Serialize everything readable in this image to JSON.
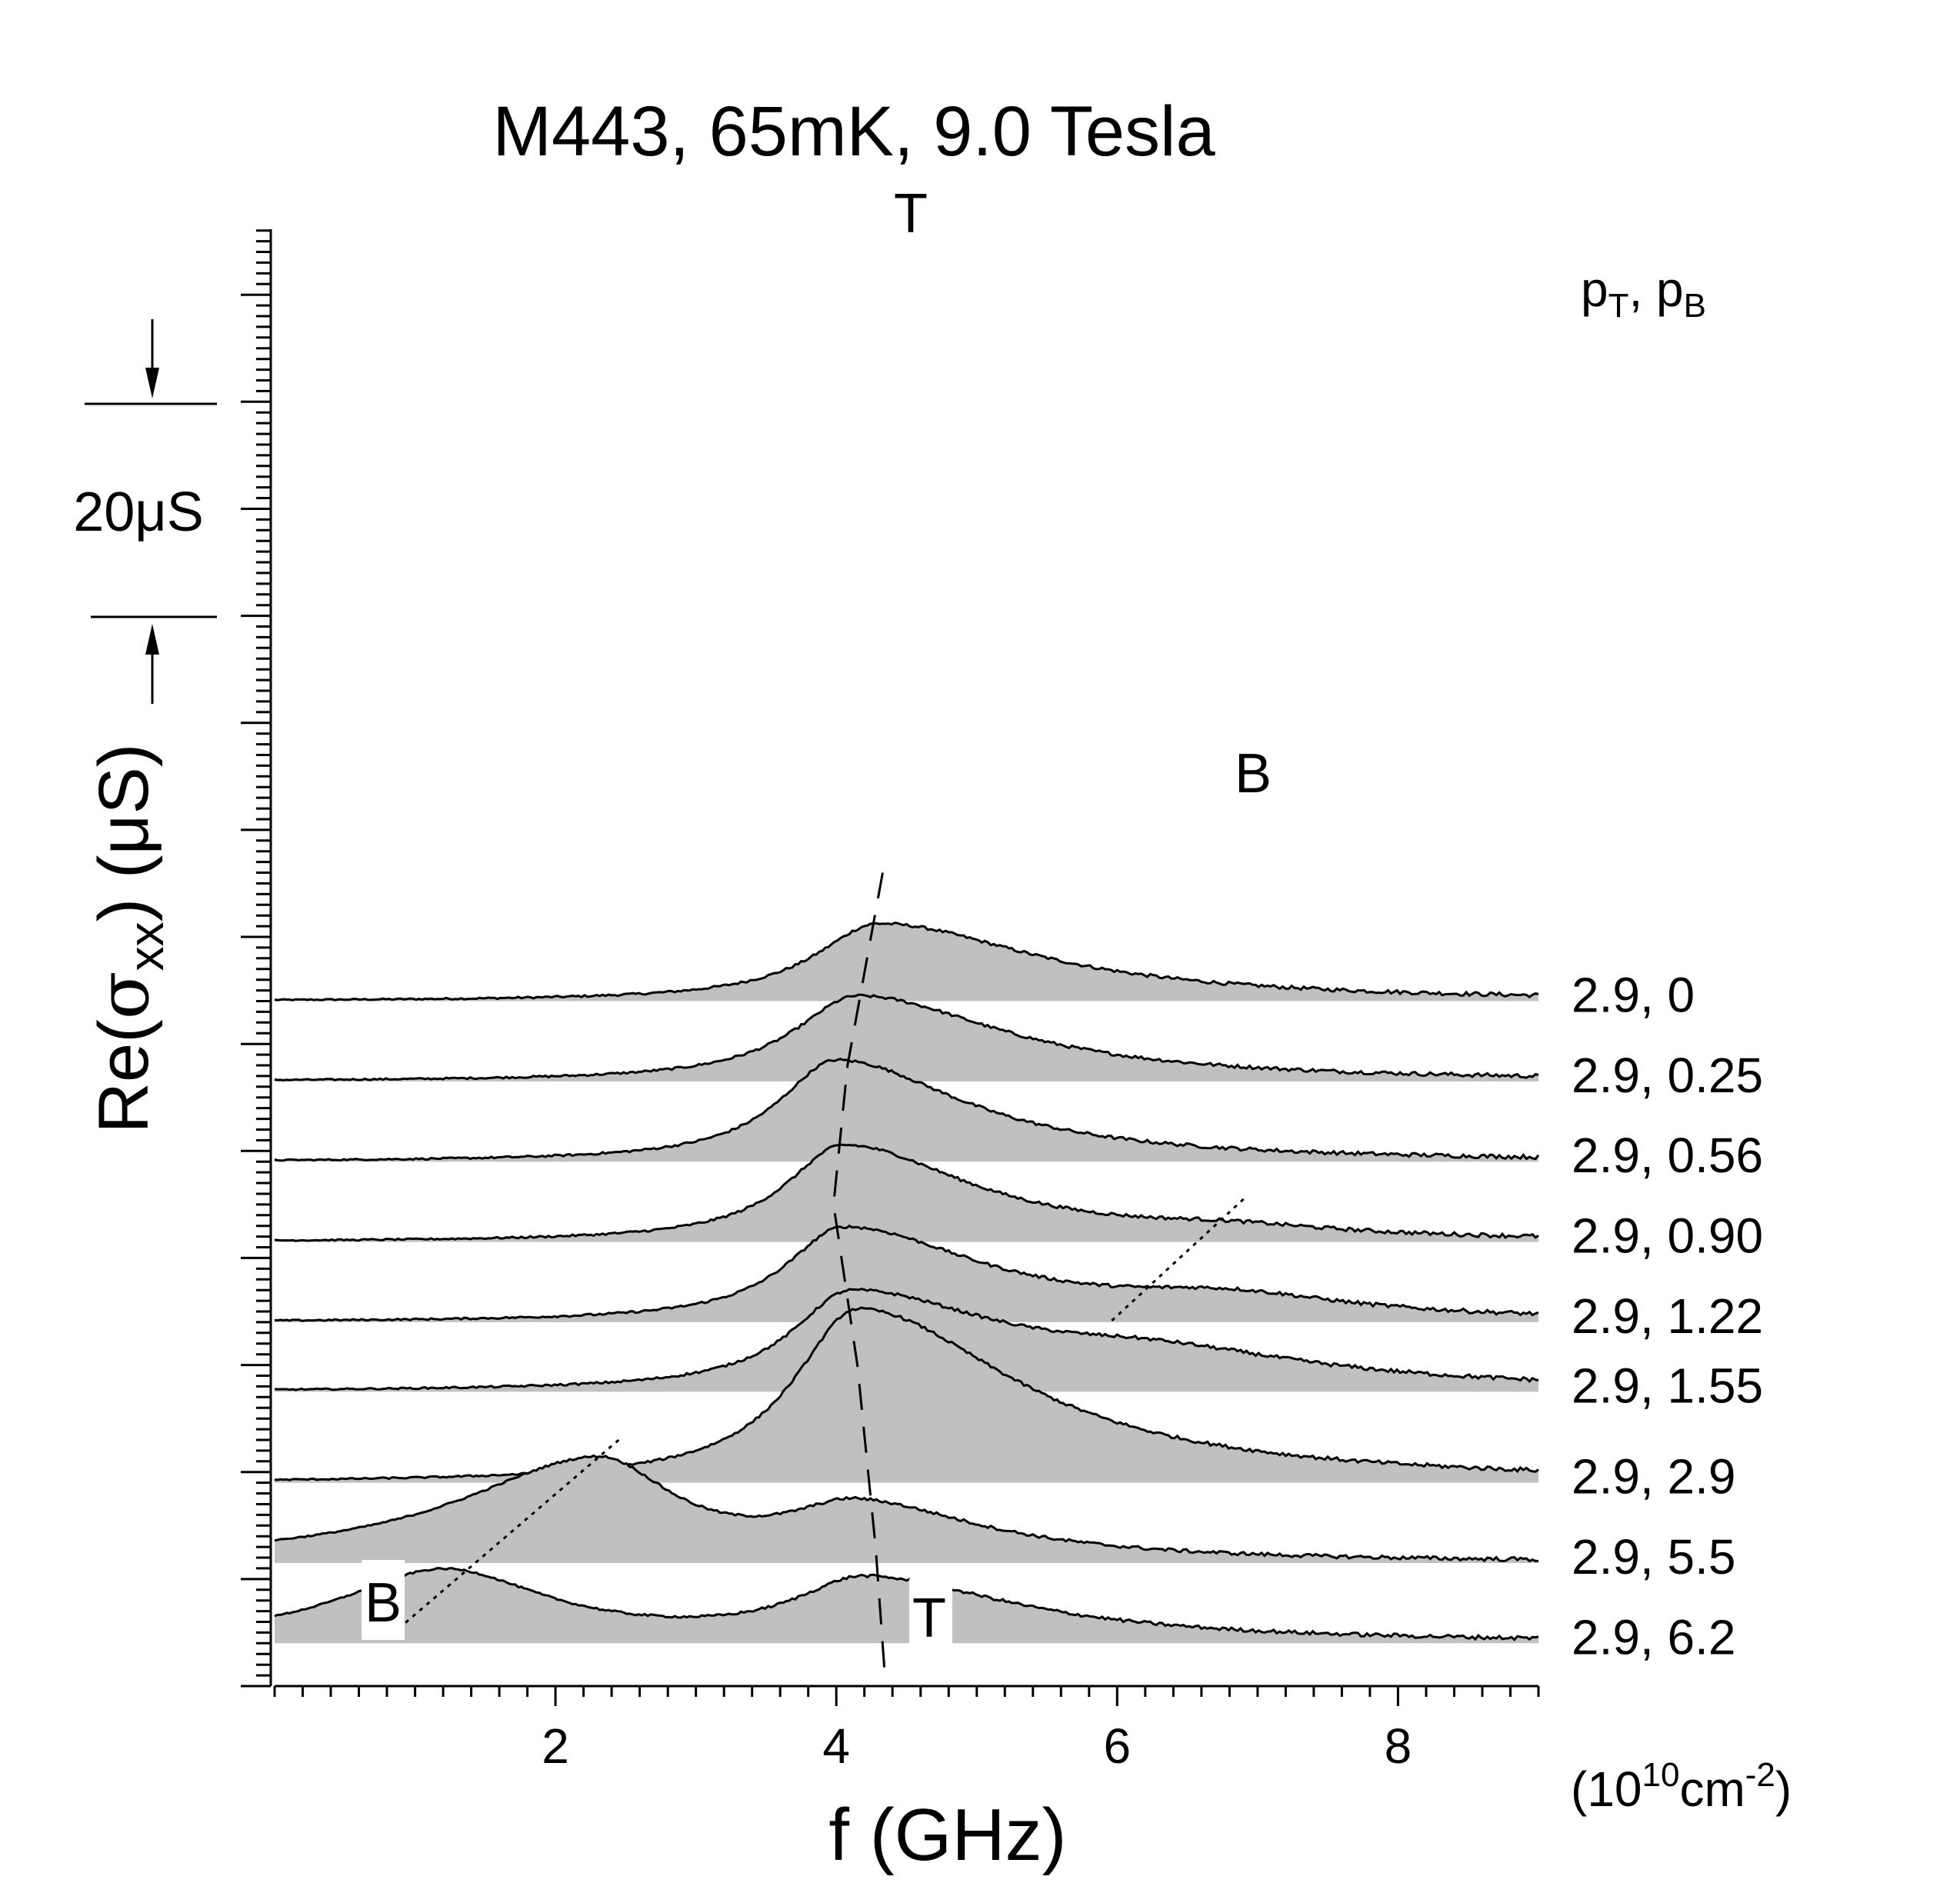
{
  "chart_data": {
    "type": "area",
    "title": "M443, 65mK, 9.0 Tesla",
    "xlabel": "f (GHz)",
    "ylabel_prefix": "Re(",
    "ylabel_sigma": "σ",
    "ylabel_sub": "xx",
    "ylabel_suffix": ") (μS)",
    "xlim": [
      0,
      9
    ],
    "x_ticks": [
      2,
      4,
      6,
      8
    ],
    "scale_bar_label": "20μS",
    "scale_bar_value_uS": 20,
    "legend_header_p": "p",
    "legend_header_sub_T": "T",
    "legend_header_sep": ", p",
    "legend_header_sub_B": "B",
    "density_unit_open": "(10",
    "density_unit_exp": "10",
    "density_unit_cm": "cm",
    "density_unit_exp2": "-2",
    "density_unit_close": ")",
    "label_T": "T",
    "label_B": "B",
    "series": [
      {
        "name": "2.9, 0",
        "pT": 2.9,
        "pB": 0,
        "offset_uS": 128,
        "peaks": [
          {
            "f": 4.3,
            "h": 14.5,
            "wl": 0.55,
            "wr": 1.35
          }
        ]
      },
      {
        "name": "2.9, 0.25",
        "pT": 2.9,
        "pB": 0.25,
        "offset_uS": 113,
        "peaks": [
          {
            "f": 4.15,
            "h": 16.0,
            "wl": 0.55,
            "wr": 1.25
          }
        ]
      },
      {
        "name": "2.9, 0.56",
        "pT": 2.9,
        "pB": 0.56,
        "offset_uS": 98,
        "peaks": [
          {
            "f": 4.0,
            "h": 19.0,
            "wl": 0.5,
            "wr": 1.1
          }
        ]
      },
      {
        "name": "2.9, 0.90",
        "pT": 2.9,
        "pB": 0.9,
        "offset_uS": 83,
        "peaks": [
          {
            "f": 4.05,
            "h": 18.0,
            "wl": 0.5,
            "wr": 1.1
          },
          {
            "f": 6.8,
            "h": 1.5,
            "wl": 0.8,
            "wr": 0.9
          }
        ]
      },
      {
        "name": "2.9, 1.22",
        "pT": 2.9,
        "pB": 1.22,
        "offset_uS": 68,
        "peaks": [
          {
            "f": 4.05,
            "h": 17.5,
            "wl": 0.5,
            "wr": 1.2
          },
          {
            "f": 6.8,
            "h": 3.5,
            "wl": 0.9,
            "wr": 1.0
          }
        ]
      },
      {
        "name": "2.9, 1.55",
        "pT": 2.9,
        "pB": 1.55,
        "offset_uS": 55,
        "peaks": [
          {
            "f": 4.1,
            "h": 18.0,
            "wl": 0.5,
            "wr": 1.3
          },
          {
            "f": 6.3,
            "h": 5.0,
            "wl": 1.1,
            "wr": 1.4
          }
        ]
      },
      {
        "name": "2.9, 2.9",
        "pT": 2.9,
        "pB": 2.9,
        "offset_uS": 38,
        "peaks": [
          {
            "f": 4.15,
            "h": 32.5,
            "wl": 0.55,
            "wr": 1.35
          }
        ]
      },
      {
        "name": "2.9, 5.5",
        "pT": 2.9,
        "pB": 5.5,
        "offset_uS": 23,
        "peaks": [
          {
            "f": 2.3,
            "h": 19.0,
            "wl": 1.2,
            "wr": 0.65
          },
          {
            "f": 4.15,
            "h": 10.0,
            "wl": 0.6,
            "wr": 1.1
          }
        ]
      },
      {
        "name": "2.9, 6.2",
        "pT": 2.9,
        "pB": 6.2,
        "offset_uS": 8,
        "peaks": [
          {
            "f": 1.2,
            "h": 13.5,
            "wl": 0.9,
            "wr": 0.9
          },
          {
            "f": 4.2,
            "h": 11.5,
            "wl": 0.6,
            "wr": 1.3
          }
        ]
      }
    ],
    "T_line": [
      [
        4.33,
        152.0
      ],
      [
        4.08,
        116.0
      ],
      [
        3.98,
        90.0
      ],
      [
        4.15,
        60.0
      ],
      [
        4.28,
        26.0
      ],
      [
        4.35,
        0.5
      ]
    ],
    "B_line_upper": [
      [
        6.9,
        91.0
      ],
      [
        5.95,
        68.0
      ]
    ],
    "B_line_lower": [
      [
        2.45,
        46.0
      ],
      [
        0.85,
        10.0
      ]
    ],
    "colors": {
      "fill": "#c0c0c0",
      "line": "#000000",
      "background": "#ffffff"
    }
  }
}
